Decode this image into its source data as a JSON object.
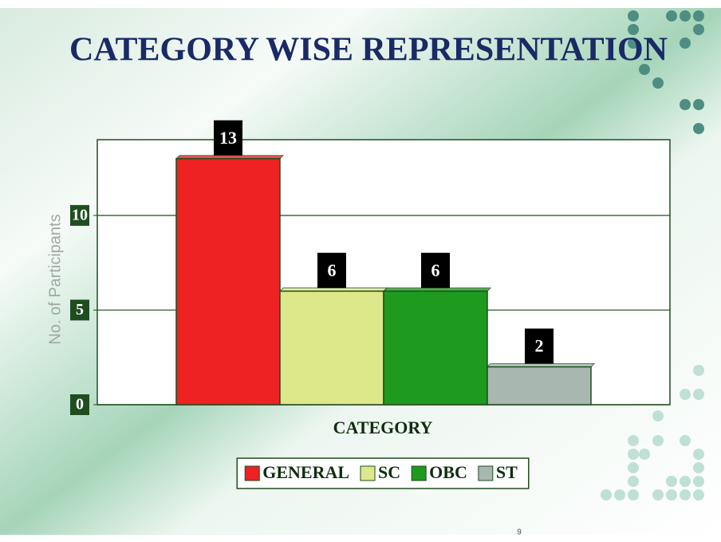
{
  "chart_data": {
    "type": "bar",
    "title": "CATEGORY WISE REPRESENTATION",
    "x_label": "CATEGORY",
    "y_label": "No. of Participants",
    "categories": [
      null
    ],
    "series": [
      {
        "name": "GENERAL",
        "color": "#ee2222",
        "values": [
          13
        ]
      },
      {
        "name": "SC",
        "color": "#dde88a",
        "values": [
          6
        ]
      },
      {
        "name": "OBC",
        "color": "#1e9a1e",
        "values": [
          6
        ]
      },
      {
        "name": "ST",
        "color": "#a8b8b0",
        "values": [
          2
        ]
      }
    ],
    "ylim": [
      0,
      14
    ],
    "yticks": [
      0,
      5,
      10
    ],
    "grid": true,
    "legend": "bottom"
  },
  "footer": {
    "page_number": "9"
  }
}
